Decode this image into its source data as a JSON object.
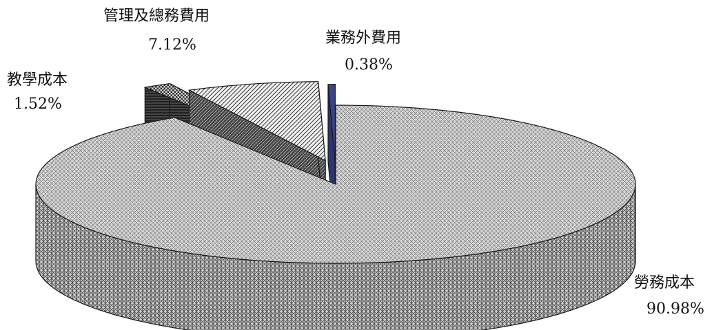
{
  "chart_data": {
    "type": "pie",
    "title": "",
    "series": [
      {
        "label": "勞務成本",
        "value": 90.98,
        "value_label": "90.98%",
        "pattern": "light-grid",
        "explode": 0.0
      },
      {
        "label": "教學成本",
        "value": 1.52,
        "value_label": "1.52%",
        "pattern": "dark-checker",
        "explode": 0.2
      },
      {
        "label": "管理及總務費用",
        "value": 7.12,
        "value_label": "7.12%",
        "pattern": "diagonal-hatch",
        "explode": 0.14
      },
      {
        "label": "業務外費用",
        "value": 0.38,
        "value_label": "0.38%",
        "pattern": "solid-blue",
        "explode": 0.12
      }
    ],
    "style": "3d-exploded",
    "colors": {
      "outline": "#1a1a1a",
      "blue_slice": "#2d3570"
    }
  }
}
